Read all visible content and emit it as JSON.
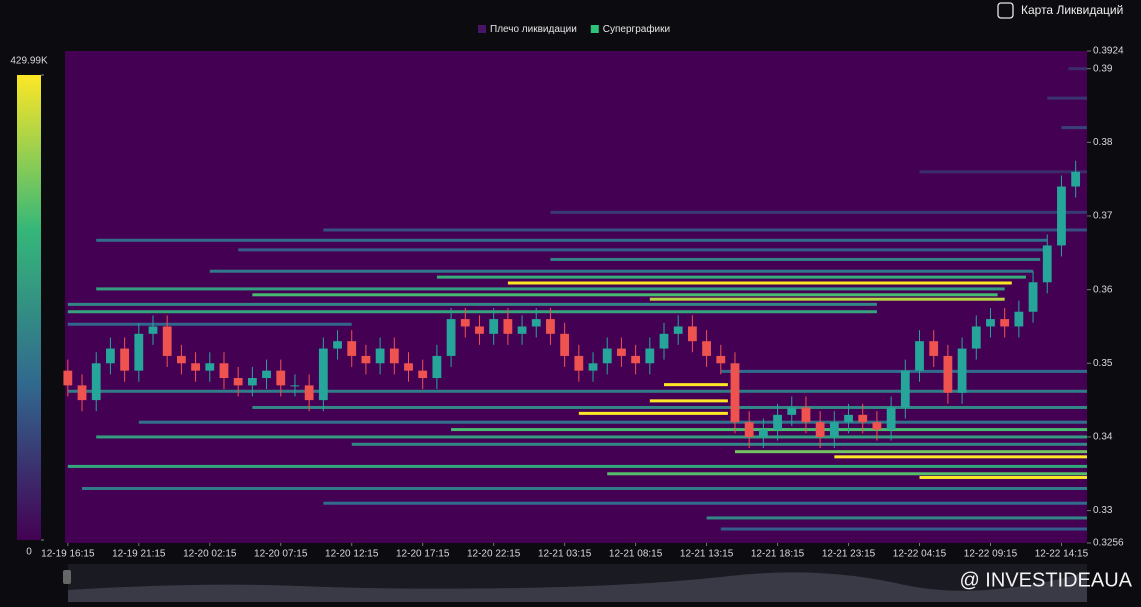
{
  "toggle_label": "Карта Ликвидаций",
  "watermark": "@ INVESTIDEAUA",
  "chart_data": {
    "type": "liquidation-heatmap",
    "legend_items": [
      {
        "name": "Плечо ликвидации",
        "color": "#4a1466"
      },
      {
        "name": "Суперграфики",
        "color": "#2fc27a"
      }
    ],
    "colorscale": [
      "#440154",
      "#31688e",
      "#35b779",
      "#fde725"
    ],
    "colorbar_lim": [
      0,
      429990
    ],
    "colorbar_ticks": [
      0,
      {
        "value": 429990,
        "label": "429.99K"
      }
    ],
    "up_color": "#26a69a",
    "down_color": "#ef5350",
    "xlim": [
      -0.2,
      71.8
    ],
    "xticks": [
      {
        "value": 0,
        "label": "12-19 16:15"
      },
      {
        "value": 5,
        "label": "12-19 21:15"
      },
      {
        "value": 10,
        "label": "12-20 02:15"
      },
      {
        "value": 15,
        "label": "12-20 07:15"
      },
      {
        "value": 20,
        "label": "12-20 12:15"
      },
      {
        "value": 25,
        "label": "12-20 17:15"
      },
      {
        "value": 30,
        "label": "12-20 22:15"
      },
      {
        "value": 35,
        "label": "12-21 03:15"
      },
      {
        "value": 40,
        "label": "12-21 08:15"
      },
      {
        "value": 45,
        "label": "12-21 13:15"
      },
      {
        "value": 50,
        "label": "12-21 18:15"
      },
      {
        "value": 55,
        "label": "12-21 23:15"
      },
      {
        "value": 60,
        "label": "12-22 04:15"
      },
      {
        "value": 65,
        "label": "12-22 09:15"
      },
      {
        "value": 70,
        "label": "12-22 14:15"
      }
    ],
    "ylim": [
      0.3256,
      0.3924
    ],
    "yticks": [
      0.3256,
      0.33,
      0.34,
      0.35,
      0.36,
      0.37,
      0.38,
      0.39,
      0.3924
    ],
    "levels": {
      "price": [
        0.3705,
        0.3681,
        0.3667,
        0.3654,
        0.3641,
        0.3625,
        0.3617,
        0.3609,
        0.3601,
        0.3593,
        0.3587,
        0.358,
        0.357,
        0.3553,
        0.3489,
        0.3471,
        0.3462,
        0.3449,
        0.344,
        0.3432,
        0.342,
        0.341,
        0.34,
        0.339,
        0.338,
        0.3373,
        0.336,
        0.335,
        0.3345,
        0.333,
        0.331,
        0.329,
        0.3275,
        0.382,
        0.386,
        0.39,
        0.376
      ],
      "start": [
        34,
        18,
        2,
        12,
        34,
        10,
        26,
        31,
        2,
        13,
        41,
        0,
        0,
        0,
        46,
        42,
        0,
        41,
        13,
        36,
        5,
        27,
        2,
        20,
        47,
        54,
        0,
        38,
        60,
        1,
        18,
        45,
        46,
        70,
        69,
        70.5,
        60
      ],
      "end": [
        71.8,
        71.8,
        69,
        69,
        68.5,
        68,
        67.5,
        66.5,
        66,
        65.5,
        66,
        57,
        57,
        20,
        71.8,
        46.5,
        71.8,
        46.5,
        71.8,
        46.5,
        71.8,
        71.8,
        71.8,
        71.8,
        71.8,
        71.8,
        71.8,
        71.8,
        71.8,
        71.8,
        71.8,
        71.8,
        71.8,
        71.8,
        71.8,
        71.8,
        71.8
      ],
      "value": [
        80000,
        110000,
        150000,
        130000,
        190000,
        170000,
        270000,
        429990,
        240000,
        300000,
        380000,
        200000,
        250000,
        140000,
        150000,
        429990,
        180000,
        429990,
        200000,
        429990,
        160000,
        300000,
        240000,
        200000,
        330000,
        429990,
        260000,
        310000,
        429990,
        180000,
        150000,
        200000,
        130000,
        90000,
        70000,
        60000,
        60000
      ]
    },
    "candles": {
      "x": [
        0,
        1,
        2,
        3,
        4,
        5,
        6,
        7,
        8,
        9,
        10,
        11,
        12,
        13,
        14,
        15,
        16,
        17,
        18,
        19,
        20,
        21,
        22,
        23,
        24,
        25,
        26,
        27,
        28,
        29,
        30,
        31,
        32,
        33,
        34,
        35,
        36,
        37,
        38,
        39,
        40,
        41,
        42,
        43,
        44,
        45,
        46,
        47,
        48,
        49,
        50,
        51,
        52,
        53,
        54,
        55,
        56,
        57,
        58,
        59,
        60,
        61,
        62,
        63,
        64,
        65,
        66,
        67,
        68,
        69,
        70,
        71
      ],
      "open": [
        0.349,
        0.347,
        0.345,
        0.35,
        0.352,
        0.349,
        0.354,
        0.355,
        0.351,
        0.35,
        0.349,
        0.35,
        0.348,
        0.347,
        0.348,
        0.349,
        0.347,
        0.347,
        0.345,
        0.352,
        0.353,
        0.351,
        0.35,
        0.352,
        0.35,
        0.349,
        0.348,
        0.351,
        0.356,
        0.355,
        0.354,
        0.356,
        0.354,
        0.355,
        0.356,
        0.354,
        0.351,
        0.349,
        0.35,
        0.352,
        0.351,
        0.35,
        0.352,
        0.354,
        0.355,
        0.353,
        0.351,
        0.35,
        0.342,
        0.34,
        0.341,
        0.343,
        0.344,
        0.342,
        0.34,
        0.342,
        0.343,
        0.342,
        0.341,
        0.344,
        0.349,
        0.353,
        0.351,
        0.346,
        0.352,
        0.355,
        0.356,
        0.355,
        0.357,
        0.361,
        0.366,
        0.374
      ],
      "high": [
        0.3505,
        0.3485,
        0.3515,
        0.3535,
        0.3535,
        0.3555,
        0.3565,
        0.3565,
        0.3525,
        0.3515,
        0.3515,
        0.3515,
        0.3495,
        0.3495,
        0.3505,
        0.3505,
        0.3485,
        0.3485,
        0.3535,
        0.3545,
        0.3545,
        0.3525,
        0.3535,
        0.3535,
        0.3515,
        0.3505,
        0.3525,
        0.3575,
        0.3575,
        0.3565,
        0.3575,
        0.3575,
        0.3565,
        0.3575,
        0.3575,
        0.3555,
        0.3525,
        0.3515,
        0.3535,
        0.3535,
        0.3525,
        0.3535,
        0.3555,
        0.3565,
        0.3565,
        0.3545,
        0.3525,
        0.3515,
        0.3435,
        0.3425,
        0.3445,
        0.3455,
        0.3455,
        0.3435,
        0.3435,
        0.3445,
        0.3445,
        0.3435,
        0.3455,
        0.3505,
        0.3545,
        0.3545,
        0.3525,
        0.3535,
        0.3565,
        0.3575,
        0.3575,
        0.3585,
        0.3625,
        0.3675,
        0.3755,
        0.3775
      ],
      "low": [
        0.3455,
        0.3435,
        0.3435,
        0.3485,
        0.3475,
        0.3475,
        0.3525,
        0.3495,
        0.3485,
        0.3475,
        0.3475,
        0.3465,
        0.3455,
        0.3455,
        0.3465,
        0.3455,
        0.3455,
        0.3435,
        0.3435,
        0.3505,
        0.3495,
        0.3485,
        0.3485,
        0.3485,
        0.3475,
        0.3465,
        0.3465,
        0.3495,
        0.3535,
        0.3525,
        0.3525,
        0.3525,
        0.3525,
        0.3535,
        0.3525,
        0.3495,
        0.3475,
        0.3475,
        0.3485,
        0.3495,
        0.3485,
        0.3485,
        0.3505,
        0.3525,
        0.3515,
        0.3495,
        0.3485,
        0.3405,
        0.3385,
        0.3385,
        0.3395,
        0.3415,
        0.3405,
        0.3385,
        0.3385,
        0.3405,
        0.3405,
        0.3395,
        0.3395,
        0.3425,
        0.3475,
        0.3495,
        0.3445,
        0.3445,
        0.3505,
        0.3535,
        0.3535,
        0.3535,
        0.3555,
        0.3595,
        0.3645,
        0.3725
      ],
      "close": [
        0.347,
        0.345,
        0.35,
        0.352,
        0.349,
        0.354,
        0.355,
        0.351,
        0.35,
        0.349,
        0.35,
        0.348,
        0.347,
        0.348,
        0.349,
        0.347,
        0.347,
        0.345,
        0.352,
        0.353,
        0.351,
        0.35,
        0.352,
        0.35,
        0.349,
        0.348,
        0.351,
        0.356,
        0.355,
        0.354,
        0.356,
        0.354,
        0.355,
        0.356,
        0.354,
        0.351,
        0.349,
        0.35,
        0.352,
        0.351,
        0.35,
        0.352,
        0.354,
        0.355,
        0.353,
        0.351,
        0.35,
        0.342,
        0.34,
        0.341,
        0.343,
        0.344,
        0.342,
        0.34,
        0.342,
        0.343,
        0.342,
        0.341,
        0.344,
        0.349,
        0.353,
        0.351,
        0.346,
        0.352,
        0.355,
        0.356,
        0.355,
        0.357,
        0.361,
        0.366,
        0.374,
        0.376
      ]
    }
  }
}
